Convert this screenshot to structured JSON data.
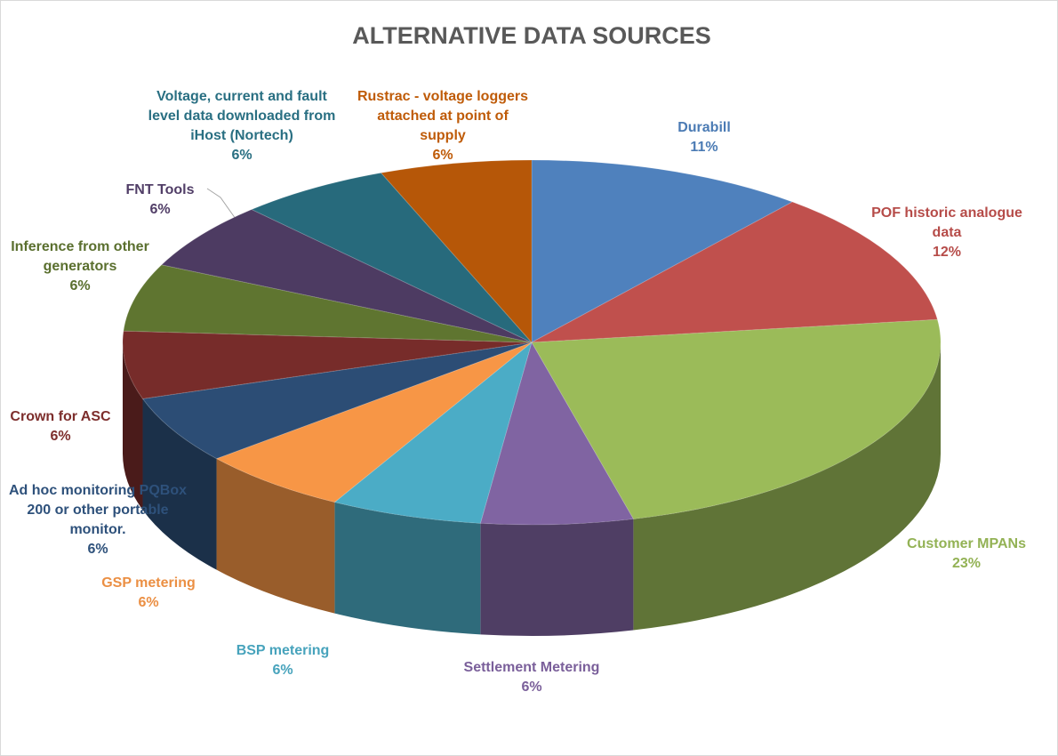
{
  "chart_data": {
    "type": "pie",
    "title": "ALTERNATIVE DATA SOURCES",
    "categories": [
      "Durabill",
      "POF historic analogue data",
      "Customer MPANs",
      "Settlement Metering",
      "BSP metering",
      "GSP metering",
      "Ad hoc monitoring PQBox 200 or other portable monitor.",
      "Crown for ASC",
      "Inference from other generators",
      "FNT Tools",
      "Voltage, current and fault level data downloaded from iHost (Nortech)",
      "Rustrac - voltage loggers attached at point of supply"
    ],
    "values": [
      11,
      12,
      23,
      6,
      6,
      6,
      6,
      6,
      6,
      6,
      6,
      6
    ],
    "value_labels": [
      "11%",
      "12%",
      "23%",
      "6%",
      "6%",
      "6%",
      "6%",
      "6%",
      "6%",
      "6%",
      "6%",
      "6%"
    ],
    "colors": [
      "#4f81bd",
      "#c0504d",
      "#9bbb59",
      "#8064a2",
      "#4bacc6",
      "#f79646",
      "#2c4d75",
      "#772c2a",
      "#5f7530",
      "#4d3b62",
      "#276a7c",
      "#b65708"
    ]
  }
}
